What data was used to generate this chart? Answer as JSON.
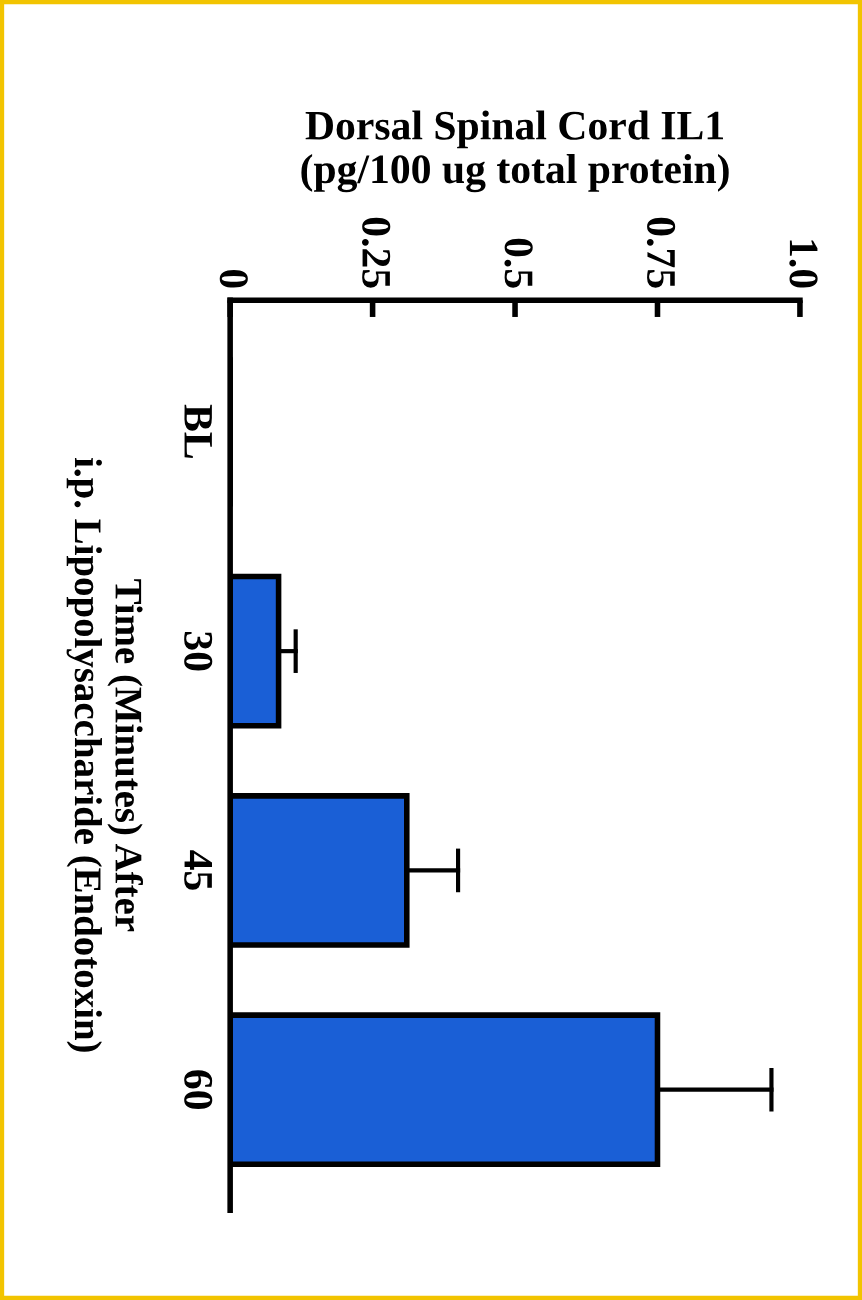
{
  "chart_data": {
    "type": "bar",
    "orientation": "horizontal",
    "xlabel": "Dorsal Spinal Cord IL1\n(pg/100 ug total protein)",
    "ylabel": "Time (Minutes) After\ni.p. Lipopolysaccharide (Endotoxin)",
    "categories": [
      "BL",
      "30",
      "45",
      "60"
    ],
    "values": [
      0,
      0.085,
      0.31,
      0.75
    ],
    "errors": [
      null,
      [
        0.085,
        0.115
      ],
      [
        0.31,
        0.4
      ],
      [
        0.75,
        0.95
      ]
    ],
    "color": "#1a5fd6",
    "xlim": [
      0,
      1.0
    ],
    "xticks": [
      {
        "value": 0,
        "label": "0"
      },
      0.25,
      0.5,
      0.75,
      {
        "value": 1.0,
        "label": "1.0"
      }
    ],
    "grid": false,
    "legend": false
  }
}
